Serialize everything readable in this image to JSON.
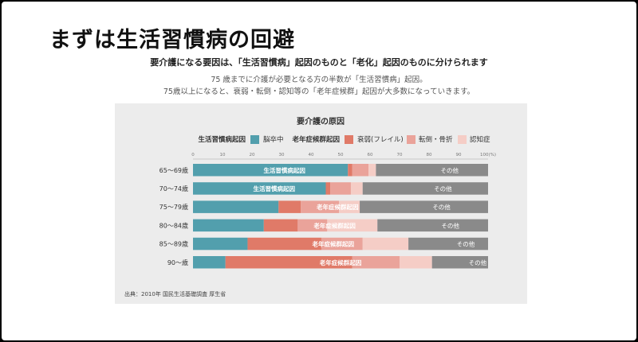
{
  "header": {
    "title": "まずは生活習慣病の回避",
    "subtitle": "要介護になる要因は、「生活習慣病」起因のものと「老化」起因のものに分けられます",
    "note_lines": [
      "75 歳までに介護が必要となる方の半数が「生活習慣病」起因。",
      "75歳以上になると、衰弱・転倒・認知等の「老年症候群」起因が大多数になっていきます。"
    ]
  },
  "colors": {
    "stroke": "#529fad",
    "frailty": "#e07a68",
    "fracture": "#eaa39a",
    "dementia": "#f5cdc6",
    "other": "#8a8a8a"
  },
  "chart_data": {
    "type": "bar",
    "orientation": "horizontal",
    "stacked": true,
    "title": "要介護の原因",
    "source": "出典：2010年 国民生活基礎調査 厚生省",
    "legend_groups": [
      {
        "label": "生活習慣病起因",
        "series": [
          "脳卒中"
        ]
      },
      {
        "label": "老年症候群起因",
        "series": [
          "衰弱(フレイル)",
          "転倒・骨折",
          "認知症"
        ]
      }
    ],
    "xlim": [
      0,
      100
    ],
    "xticks": [
      "0",
      "10",
      "20",
      "30",
      "40",
      "50",
      "60",
      "70",
      "80",
      "90",
      "100(%)"
    ],
    "categories": [
      "65～69歳",
      "70～74歳",
      "75～79歳",
      "80～84歳",
      "85～89歳",
      "90～歳"
    ],
    "series": [
      {
        "name": "脳卒中",
        "color_key": "stroke",
        "values": [
          52.5,
          45.0,
          29.0,
          24.0,
          18.5,
          11.0
        ]
      },
      {
        "name": "衰弱(フレイル)",
        "color_key": "frailty",
        "values": [
          1.5,
          1.5,
          7.5,
          11.5,
          25.0,
          43.0
        ]
      },
      {
        "name": "転倒・骨折",
        "color_key": "fracture",
        "values": [
          5.5,
          7.0,
          13.0,
          10.0,
          14.0,
          16.0
        ]
      },
      {
        "name": "認知症",
        "color_key": "dementia",
        "values": [
          2.5,
          4.0,
          7.0,
          17.0,
          15.5,
          11.0
        ]
      },
      {
        "name": "その他",
        "color_key": "other",
        "values": [
          38.0,
          42.5,
          43.5,
          37.5,
          27.0,
          19.0
        ]
      }
    ],
    "bar_labels": [
      {
        "text": "生活習慣病起因",
        "center": 31.0
      },
      {
        "text": "生活習慣病起因",
        "center": 27.5
      },
      {
        "text": "老年症候群起因",
        "center": 49.0
      },
      {
        "text": "老年症候群起因",
        "center": 48.0
      },
      {
        "text": "老年症候群起因",
        "center": 47.5
      },
      {
        "text": "老年症候群起因",
        "center": 50.0
      }
    ],
    "other_label": "その他"
  }
}
